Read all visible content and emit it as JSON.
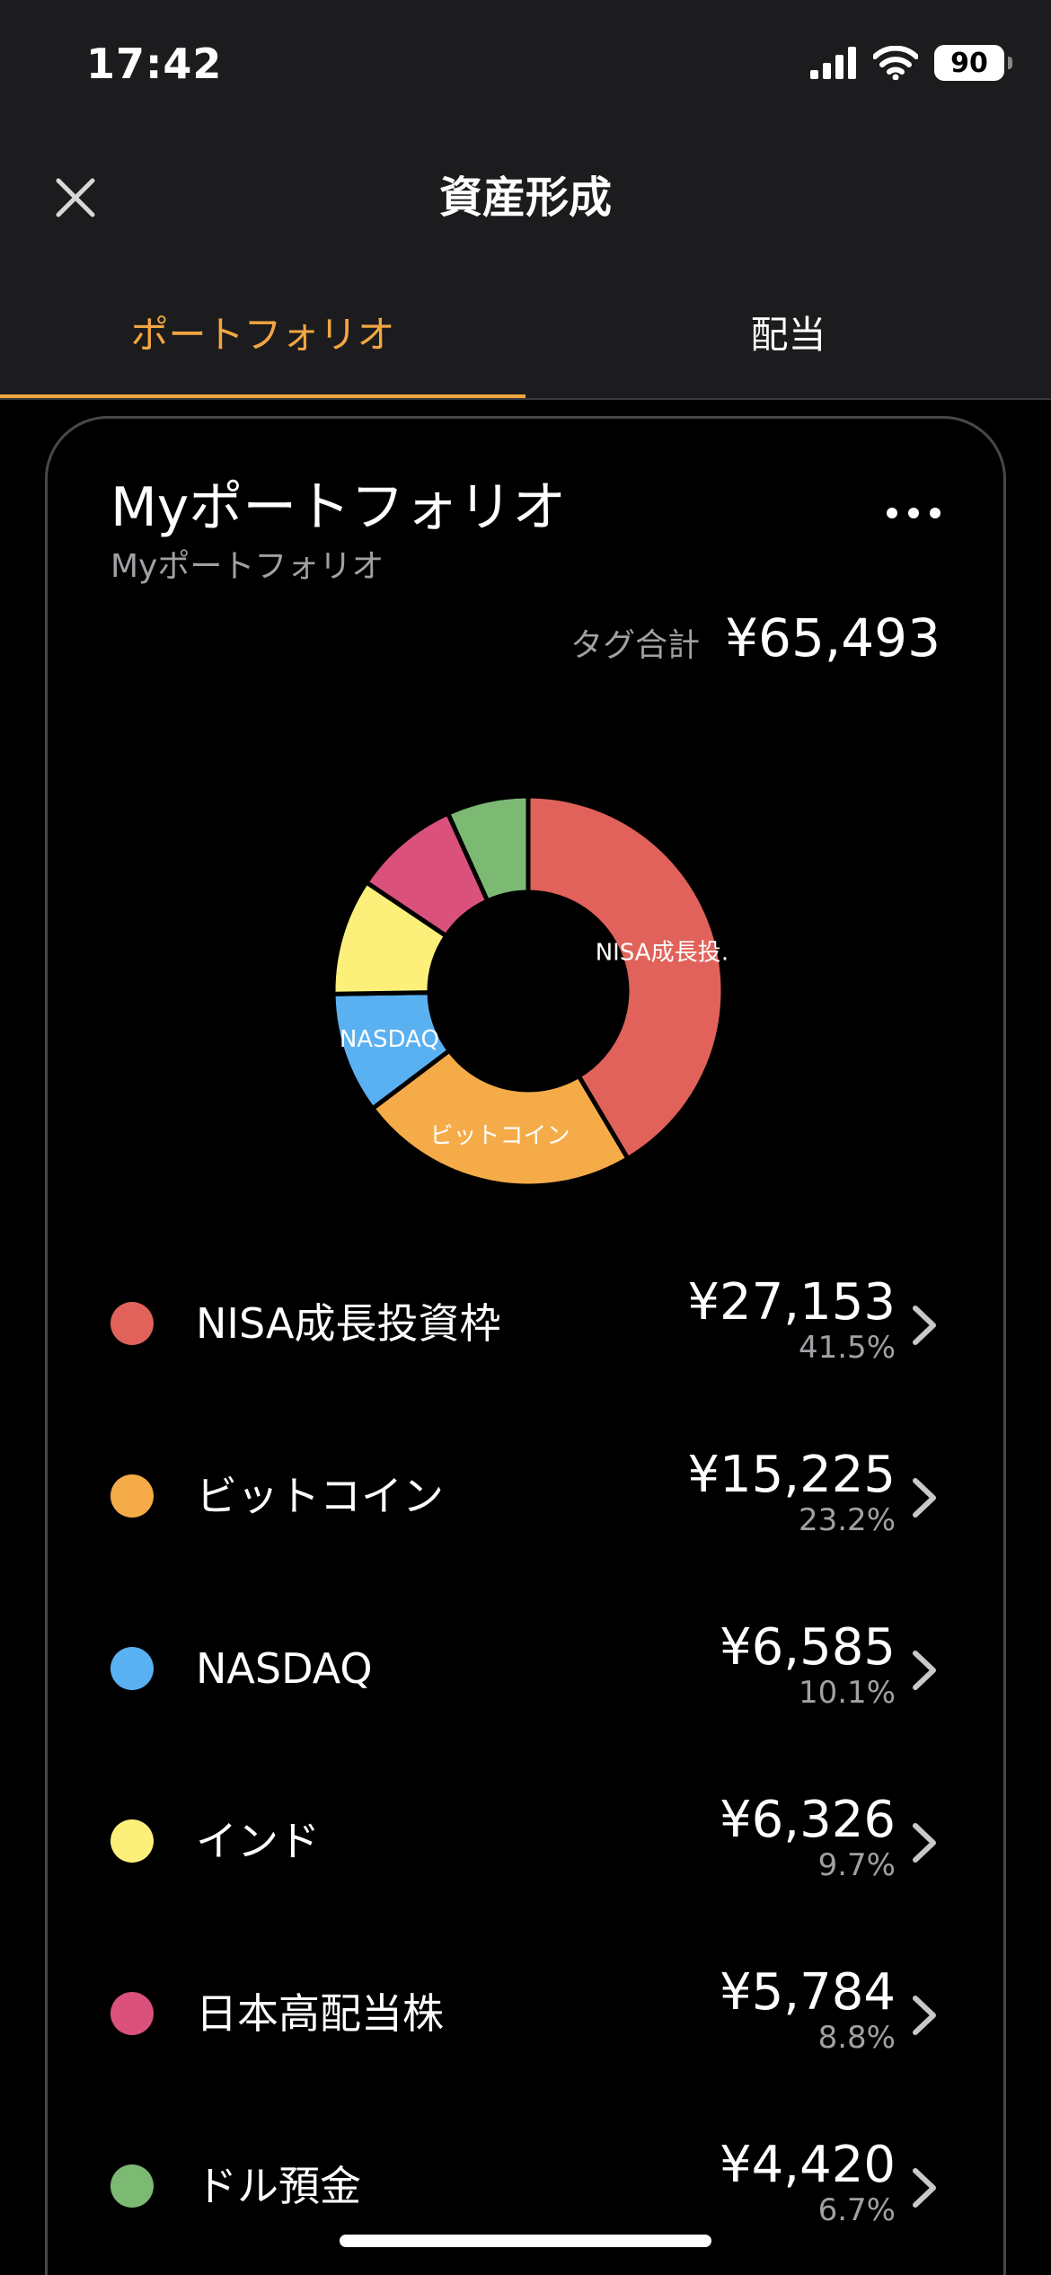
{
  "status_bar": {
    "time": "17:42",
    "battery": "90"
  },
  "nav": {
    "title": "資産形成",
    "close_icon": "close-icon"
  },
  "tabs": [
    {
      "label": "ポートフォリオ",
      "active": true
    },
    {
      "label": "配当",
      "active": false
    }
  ],
  "card": {
    "title": "Myポートフォリオ",
    "subtitle": "Myポートフォリオ",
    "more_icon": "more-icon",
    "total_label": "タグ合計",
    "total_value": "¥65,493"
  },
  "chart_data": {
    "type": "pie",
    "donut": true,
    "categories": [
      "NISA成長投資枠",
      "ビットコイン",
      "NASDAQ",
      "インド",
      "日本高配当株",
      "ドル預金"
    ],
    "values": [
      27153,
      15225,
      6585,
      6326,
      5784,
      4420
    ],
    "percentages": [
      41.5,
      23.2,
      10.1,
      9.7,
      8.8,
      6.7
    ],
    "colors": [
      "#e0625a",
      "#f5ac48",
      "#5ab1f1",
      "#fdf07a",
      "#da527c",
      "#7cba74"
    ],
    "slice_labels": [
      "NISA成長投…",
      "ビットコイン",
      "NASDAQ",
      "",
      "",
      ""
    ]
  },
  "legend": [
    {
      "name": "NISA成長投資枠",
      "amount": "¥27,153",
      "percent": "41.5%",
      "color": "#e0625a"
    },
    {
      "name": "ビットコイン",
      "amount": "¥15,225",
      "percent": "23.2%",
      "color": "#f5ac48"
    },
    {
      "name": "NASDAQ",
      "amount": "¥6,585",
      "percent": "10.1%",
      "color": "#5ab1f1"
    },
    {
      "name": "インド",
      "amount": "¥6,326",
      "percent": "9.7%",
      "color": "#fdf07a"
    },
    {
      "name": "日本高配当株",
      "amount": "¥5,784",
      "percent": "8.8%",
      "color": "#da527c"
    },
    {
      "name": "ドル預金",
      "amount": "¥4,420",
      "percent": "6.7%",
      "color": "#7cba74"
    }
  ],
  "colors": {
    "accent": "#f2a641",
    "background": "#000000",
    "header": "#1c1c1e"
  }
}
